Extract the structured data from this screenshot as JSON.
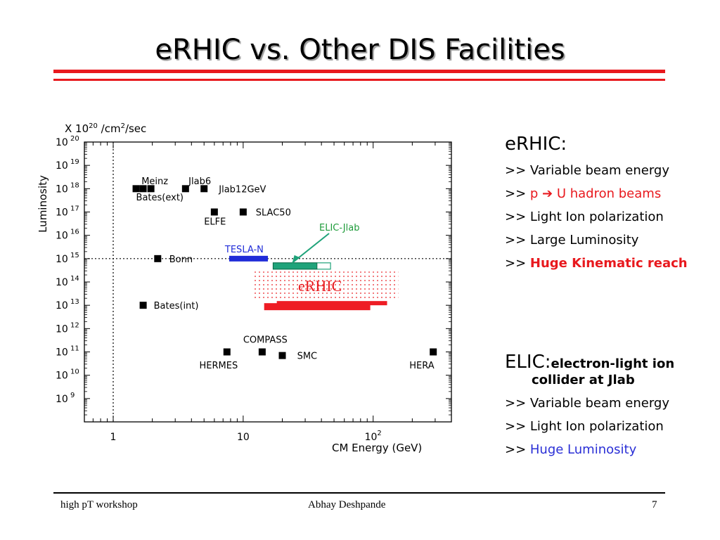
{
  "slide": {
    "title": "eRHIC vs. Other DIS Facilities",
    "accent_color": "#e8191e"
  },
  "chart_data": {
    "type": "scatter",
    "title": "",
    "xlabel": "CM Energy (GeV)",
    "ylabel": "Luminosity",
    "y_unit_label": "X 10^20 /cm^2/sec",
    "x_scale": "log",
    "y_scale": "log",
    "xlim": [
      0.6,
      400
    ],
    "ylim": [
      100000000.0,
      1e+20
    ],
    "x_ticks": [
      {
        "value": 1,
        "label": "1"
      },
      {
        "value": 10,
        "label": "10"
      },
      {
        "value": 100,
        "label": "10",
        "sup": "2"
      }
    ],
    "y_ticks": [
      {
        "exp": 20,
        "label": "10",
        "sup": "20"
      },
      {
        "exp": 19,
        "label": "10",
        "sup": "19"
      },
      {
        "exp": 18,
        "label": "10",
        "sup": "18"
      },
      {
        "exp": 17,
        "label": "10",
        "sup": "17"
      },
      {
        "exp": 16,
        "label": "10",
        "sup": "16"
      },
      {
        "exp": 15,
        "label": "10",
        "sup": "15"
      },
      {
        "exp": 14,
        "label": "10",
        "sup": "14"
      },
      {
        "exp": 13,
        "label": "10",
        "sup": "13"
      },
      {
        "exp": 12,
        "label": "10",
        "sup": "12"
      },
      {
        "exp": 11,
        "label": "10",
        "sup": "11"
      },
      {
        "exp": 10,
        "label": "10",
        "sup": "10"
      },
      {
        "exp": 9,
        "label": "10",
        "sup": "9"
      }
    ],
    "reference_lines": {
      "x": 1.0,
      "y": 1000000000000000.0
    },
    "points": [
      {
        "x": 1.5,
        "y": 1e+18
      },
      {
        "x": 1.7,
        "y": 1e+18
      },
      {
        "x": 1.95,
        "y": 1e+18
      },
      {
        "x": 3.6,
        "y": 1e+18
      },
      {
        "x": 5.0,
        "y": 1e+18
      },
      {
        "x": 6.0,
        "y": 1e+17
      },
      {
        "x": 10.0,
        "y": 1e+17
      },
      {
        "x": 2.2,
        "y": 1000000000000000.0
      },
      {
        "x": 1.7,
        "y": 10000000000000.0
      },
      {
        "x": 7.5,
        "y": 100000000000.0
      },
      {
        "x": 14.0,
        "y": 100000000000.0
      },
      {
        "x": 20.0,
        "y": 70000000000.0
      },
      {
        "x": 290.0,
        "y": 100000000000.0
      }
    ],
    "point_labels": [
      {
        "text": "Meinz",
        "x": 1.65,
        "y": 2.2e+18
      },
      {
        "text": "Jlab6",
        "x": 3.8,
        "y": 2.2e+18
      },
      {
        "text": "Bates(ext)",
        "x": 1.5,
        "y": 4.5e+17
      },
      {
        "text": "Jlab12GeV",
        "x": 6.5,
        "y": 1e+18
      },
      {
        "text": "SLAC50",
        "x": 12.5,
        "y": 1e+17
      },
      {
        "text": "ELFE",
        "x": 5.0,
        "y": 4e+16
      },
      {
        "text": "Bonn",
        "x": 2.7,
        "y": 1000000000000000.0
      },
      {
        "text": "Bates(int)",
        "x": 2.05,
        "y": 10000000000000.0
      },
      {
        "text": "COMPASS",
        "x": 10.0,
        "y": 350000000000.0
      },
      {
        "text": "HERMES",
        "x": 4.6,
        "y": 28000000000.0
      },
      {
        "text": "SMC",
        "x": 26.0,
        "y": 70000000000.0
      },
      {
        "text": "HERA",
        "x": 190.0,
        "y": 28000000000.0
      }
    ],
    "ranges": [
      {
        "name": "TESLA-N",
        "x": [
          7.8,
          15.5
        ],
        "y": 1000000000000000.0,
        "color": "#1f2bd8",
        "label_color": "#1f2bd8"
      },
      {
        "name": "ELIC-Jlab",
        "x": [
          17.0,
          37.0
        ],
        "y": 500000000000000.0,
        "color": "#1fa37a",
        "extend_to": 47.0,
        "label_color": "#1e9b3a"
      },
      {
        "name": "eRHIC",
        "x": [
          14.5,
          95.0
        ],
        "y": 10000000000000.0,
        "color": "#ee1c24",
        "extend_to": 128.0,
        "label_color": "#e8191e"
      }
    ]
  },
  "erhic_panel": {
    "heading": "eRHIC:",
    "arrow": ">>",
    "items": [
      {
        "text": "Variable beam energy",
        "style": "plain"
      },
      {
        "text": "p ➔ U hadron beams",
        "style": "red"
      },
      {
        "text": "Light Ion  polarization",
        "style": "plain"
      },
      {
        "text": "Large Luminosity",
        "style": "plain"
      },
      {
        "text": "Huge Kinematic reach",
        "style": "redb"
      }
    ]
  },
  "elic_panel": {
    "heading": "ELIC:",
    "subheading_1": "electron-light ion",
    "subheading_2": "collider at Jlab",
    "arrow": ">>",
    "items": [
      {
        "text": "Variable beam energy",
        "style": "plain"
      },
      {
        "text": "Light Ion polarization",
        "style": "plain"
      },
      {
        "text": "Huge Luminosity",
        "style": "blue"
      }
    ]
  },
  "footer": {
    "left": "high pT workshop",
    "center": "Abhay Deshpande",
    "right": "7"
  }
}
